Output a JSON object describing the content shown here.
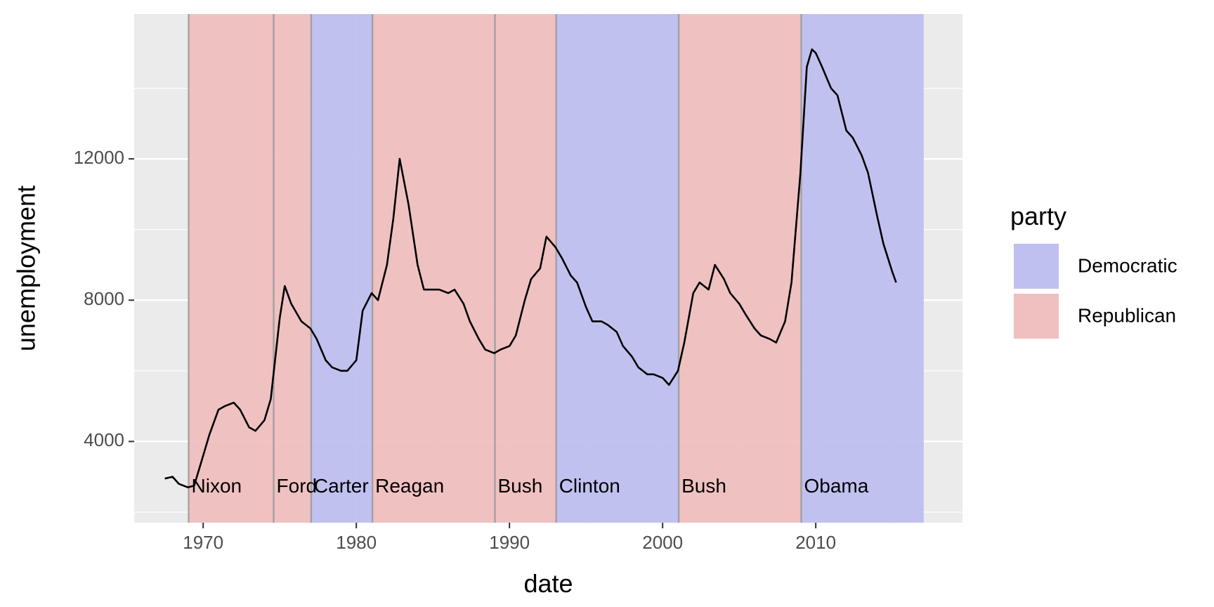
{
  "chart_data": {
    "type": "line",
    "xlabel": "date",
    "ylabel": "unemployment",
    "xlim": [
      "1965-07-01",
      "2019-08-01"
    ],
    "ylim": [
      1700,
      16100
    ],
    "x_ticks": [
      "1970",
      "1980",
      "1990",
      "2000",
      "2010"
    ],
    "y_ticks": [
      4000,
      8000,
      12000
    ],
    "grid": true,
    "legend": {
      "title": "party",
      "position": "right",
      "entries": [
        {
          "label": "Democratic",
          "color": "#bfbff0"
        },
        {
          "label": "Republican",
          "color": "#f0bfbf"
        }
      ]
    },
    "colors": {
      "panel": "#ebebeb",
      "grid": "#ffffff",
      "line": "#000000",
      "Democratic": "#bfbff0",
      "Republican": "#f0bfbf",
      "term_line": "#999999"
    },
    "presidential": [
      {
        "name": "Nixon",
        "start": "1969-01-20",
        "end": "1974-08-09",
        "party": "Republican"
      },
      {
        "name": "Ford",
        "start": "1974-08-09",
        "end": "1977-01-20",
        "party": "Republican"
      },
      {
        "name": "Carter",
        "start": "1977-01-20",
        "end": "1981-01-20",
        "party": "Democratic"
      },
      {
        "name": "Reagan",
        "start": "1981-01-20",
        "end": "1989-01-20",
        "party": "Republican"
      },
      {
        "name": "Bush",
        "start": "1989-01-20",
        "end": "1993-01-20",
        "party": "Republican"
      },
      {
        "name": "Clinton",
        "start": "1993-01-20",
        "end": "2001-01-20",
        "party": "Democratic"
      },
      {
        "name": "Bush",
        "start": "2001-01-20",
        "end": "2009-01-20",
        "party": "Republican"
      },
      {
        "name": "Obama",
        "start": "2009-01-20",
        "end": "2017-01-20",
        "party": "Democratic"
      }
    ],
    "series": [
      {
        "x": [
          "1967-07-01",
          "1968-01-01",
          "1968-06-01",
          "1969-01-01",
          "1969-06-01",
          "1970-01-01",
          "1970-06-01",
          "1971-01-01",
          "1971-06-01",
          "1972-01-01",
          "1972-06-01",
          "1973-01-01",
          "1973-06-01",
          "1974-01-01",
          "1974-06-01",
          "1975-01-01",
          "1975-05-01",
          "1975-10-01",
          "1976-06-01",
          "1977-01-01",
          "1977-06-01",
          "1978-01-01",
          "1978-06-01",
          "1979-01-01",
          "1979-06-01",
          "1980-01-01",
          "1980-06-01",
          "1981-01-01",
          "1981-06-01",
          "1982-01-01",
          "1982-06-01",
          "1982-11-01",
          "1983-06-01",
          "1984-01-01",
          "1984-06-01",
          "1985-01-01",
          "1985-06-01",
          "1986-01-01",
          "1986-06-01",
          "1987-01-01",
          "1987-06-01",
          "1988-01-01",
          "1988-06-01",
          "1989-01-01",
          "1989-06-01",
          "1990-01-01",
          "1990-06-01",
          "1991-01-01",
          "1991-06-01",
          "1992-01-01",
          "1992-06-01",
          "1993-01-01",
          "1993-06-01",
          "1994-01-01",
          "1994-06-01",
          "1995-01-01",
          "1995-06-01",
          "1996-01-01",
          "1996-06-01",
          "1997-01-01",
          "1997-06-01",
          "1998-01-01",
          "1998-06-01",
          "1999-01-01",
          "1999-06-01",
          "2000-01-01",
          "2000-06-01",
          "2001-01-01",
          "2001-06-01",
          "2002-01-01",
          "2002-06-01",
          "2003-01-01",
          "2003-06-01",
          "2004-01-01",
          "2004-06-01",
          "2005-01-01",
          "2005-06-01",
          "2006-01-01",
          "2006-06-01",
          "2007-01-01",
          "2007-06-01",
          "2008-01-01",
          "2008-06-01",
          "2009-01-01",
          "2009-06-01",
          "2009-10-01",
          "2010-01-01",
          "2010-06-01",
          "2011-01-01",
          "2011-06-01",
          "2012-01-01",
          "2012-06-01",
          "2013-01-01",
          "2013-06-01",
          "2014-01-01",
          "2014-06-01",
          "2015-01-01",
          "2015-04-01"
        ],
        "y": [
          2950,
          3000,
          2800,
          2700,
          2750,
          3600,
          4200,
          4900,
          5000,
          5100,
          4900,
          4400,
          4300,
          4600,
          5200,
          7500,
          8400,
          7900,
          7400,
          7200,
          6900,
          6300,
          6100,
          6000,
          6000,
          6300,
          7700,
          8200,
          8000,
          9000,
          10300,
          12000,
          10700,
          9000,
          8300,
          8300,
          8300,
          8200,
          8300,
          7900,
          7400,
          6900,
          6600,
          6500,
          6600,
          6700,
          7000,
          8000,
          8600,
          8900,
          9800,
          9500,
          9200,
          8700,
          8500,
          7800,
          7400,
          7400,
          7300,
          7100,
          6700,
          6400,
          6100,
          5900,
          5900,
          5800,
          5600,
          6000,
          6800,
          8200,
          8500,
          8300,
          9000,
          8600,
          8200,
          7900,
          7600,
          7200,
          7000,
          6900,
          6800,
          7400,
          8500,
          11600,
          14600,
          15100,
          15000,
          14600,
          14000,
          13800,
          12800,
          12600,
          12100,
          11600,
          10400,
          9600,
          8800,
          8500
        ]
      }
    ]
  }
}
